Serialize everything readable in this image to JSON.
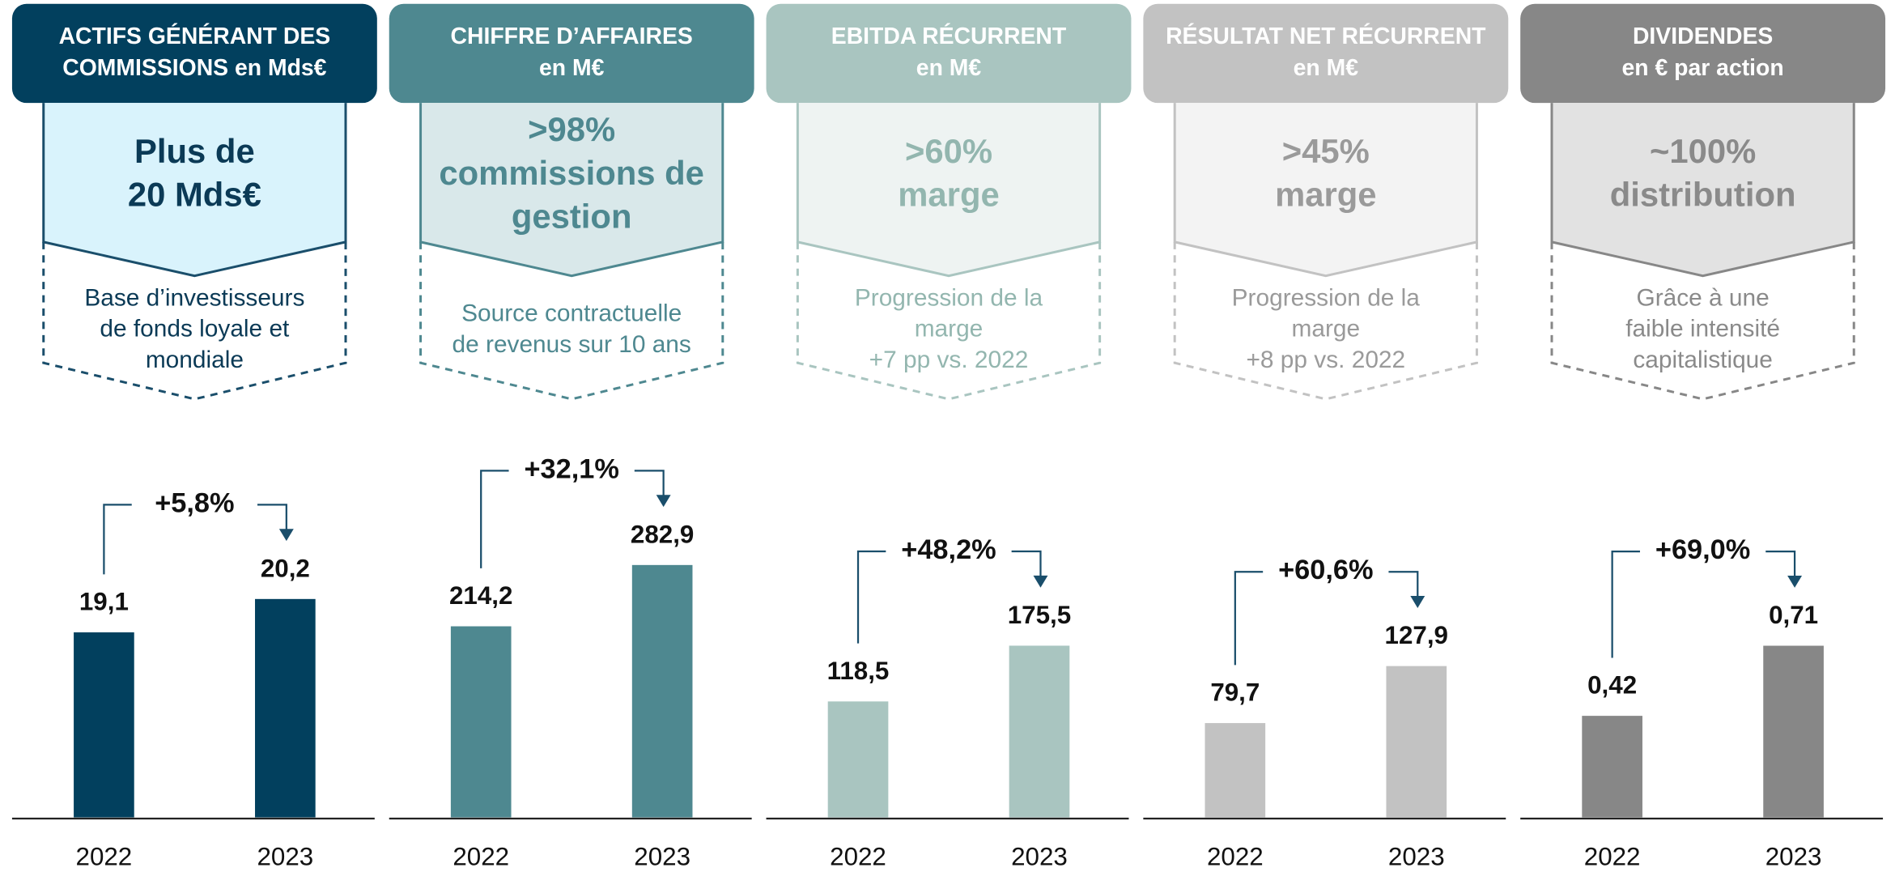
{
  "chart_data": [
    {
      "type": "bar",
      "title": [
        "ACTIFS GÉNÉRANT DES",
        "COMMISSIONS en Mds€"
      ],
      "highlight": [
        "Plus de",
        "20 Mds€"
      ],
      "description": [
        "Base d’investisseurs",
        "de fonds loyale et",
        "mondiale"
      ],
      "growth": "+5,8%",
      "categories": [
        "2022",
        "2023"
      ],
      "values": [
        19.1,
        20.2
      ],
      "value_labels": [
        "19,1",
        "20,2"
      ],
      "ylim": [
        13,
        24
      ],
      "color": "#02405e"
    },
    {
      "type": "bar",
      "title": [
        "CHIFFRE D’AFFAIRES",
        "en M€"
      ],
      "highlight": [
        ">98%",
        "commissions de",
        "gestion"
      ],
      "description": [
        "Source contractuelle",
        "de revenus sur 10 ans"
      ],
      "growth": "+32,1%",
      "categories": [
        "2022",
        "2023"
      ],
      "values": [
        214.2,
        282.9
      ],
      "value_labels": [
        "214,2",
        "282,9"
      ],
      "ylim": [
        0,
        374
      ],
      "color": "#4e8890"
    },
    {
      "type": "bar",
      "title": [
        "EBITDA RÉCURRENT",
        "en M€"
      ],
      "highlight": [
        ">60%",
        "marge"
      ],
      "description": [
        "Progression de la",
        "marge",
        "+7 pp vs. 2022"
      ],
      "growth": "+48,2%",
      "categories": [
        "2022",
        "2023"
      ],
      "values": [
        118.5,
        175.5
      ],
      "value_labels": [
        "118,5",
        "175,5"
      ],
      "ylim": [
        0,
        341
      ],
      "color": "#a9c5c0"
    },
    {
      "type": "bar",
      "title": [
        "RÉSULTAT NET RÉCURRENT",
        "en M€"
      ],
      "highlight": [
        ">45%",
        "marge"
      ],
      "description": [
        "Progression de la",
        "marge",
        "+8 pp vs. 2022"
      ],
      "growth": "+60,6%",
      "categories": [
        "2022",
        "2023"
      ],
      "values": [
        79.7,
        127.9
      ],
      "value_labels": [
        "79,7",
        "127,9"
      ],
      "ylim": [
        0,
        282
      ],
      "color": "#c2c2c2"
    },
    {
      "type": "bar",
      "title": [
        "DIVIDENDES",
        "en € par action"
      ],
      "highlight": [
        "~100%",
        "distribution"
      ],
      "description": [
        "Grâce à une",
        "faible intensité",
        "capitalistique"
      ],
      "growth": "+69,0%",
      "categories": [
        "2022",
        "2023"
      ],
      "values": [
        0.42,
        0.71
      ],
      "value_labels": [
        "0,42",
        "0,71"
      ],
      "ylim": [
        0,
        1.38
      ],
      "color": "#878787"
    }
  ]
}
